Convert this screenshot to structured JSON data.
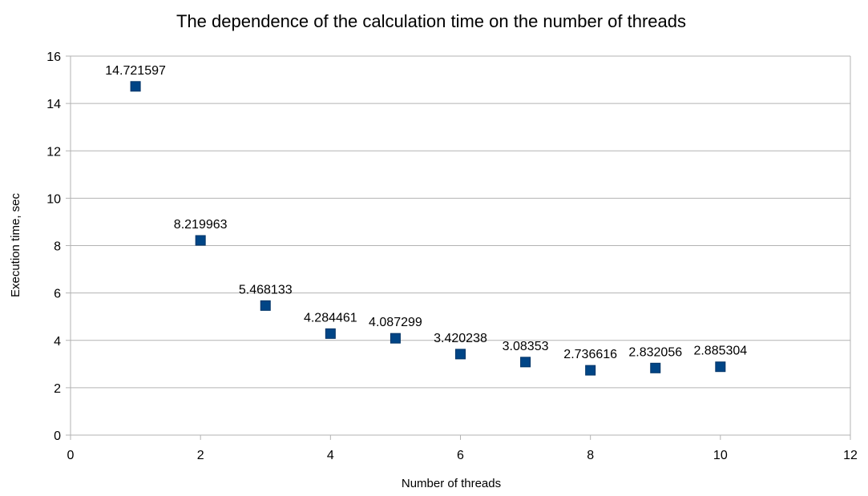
{
  "chart_data": {
    "type": "scatter",
    "title": "The dependence of the calculation time on the number of threads",
    "xlabel": "Number of threads",
    "ylabel": "Execution time, sec",
    "xlim": [
      0,
      12
    ],
    "ylim": [
      0,
      16
    ],
    "xticks": [
      "0",
      "2",
      "4",
      "6",
      "8",
      "10",
      "12"
    ],
    "yticks": [
      "0",
      "2",
      "4",
      "6",
      "8",
      "10",
      "12",
      "14",
      "16"
    ],
    "grid": true,
    "marker_color": "#004586",
    "series": [
      {
        "x": [
          1,
          2,
          3,
          4,
          5,
          6,
          7,
          8,
          9,
          10
        ],
        "y": [
          14.721597,
          8.219963,
          5.468133,
          4.284461,
          4.087299,
          3.420238,
          3.08353,
          2.736616,
          2.832056,
          2.885304
        ],
        "labels": [
          "14.721597",
          "8.219963",
          "5.468133",
          "4.284461",
          "4.087299",
          "3.420238",
          "3.08353",
          "2.736616",
          "2.832056",
          "2.885304"
        ]
      }
    ]
  }
}
